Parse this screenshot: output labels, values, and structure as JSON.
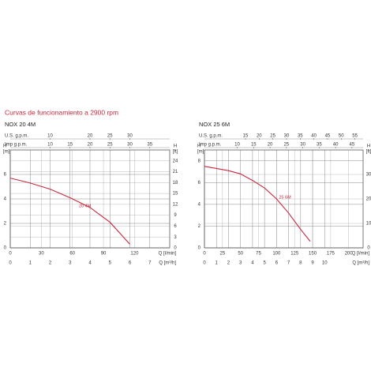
{
  "title": "Curvas de funcionamiento a 2900 rpm",
  "chart_data": [
    {
      "type": "line",
      "title": "NOX 20 4M",
      "x": [
        0,
        1,
        2,
        3,
        4,
        5,
        6
      ],
      "series": [
        {
          "name": "20 4M",
          "color": "#c8283c",
          "values": [
            5.7,
            5.3,
            4.8,
            4.1,
            3.3,
            2.1,
            0.3
          ]
        }
      ],
      "xlabel": "Q [m³/h]",
      "xlim": [
        0,
        8
      ],
      "xticks": [
        0,
        1,
        2,
        3,
        4,
        5,
        6,
        7
      ],
      "x2label": "Q [l/min]",
      "x2lim": [
        0,
        154
      ],
      "x2ticks": [
        0,
        30,
        60,
        90,
        120
      ],
      "top_axes": [
        {
          "label": "U.S. g.p.m.",
          "lim": [
            0,
            40
          ],
          "ticks": [
            10,
            20,
            25,
            30
          ]
        },
        {
          "label": "Imp g.p.m.",
          "lim": [
            0,
            40
          ],
          "ticks": [
            10,
            15,
            20,
            25,
            30,
            35
          ]
        }
      ],
      "ylabel": [
        "H",
        "[m]"
      ],
      "ylim": [
        0,
        8
      ],
      "yticks": [
        0,
        2,
        4,
        6
      ],
      "y2label": [
        "H",
        "[ft]"
      ],
      "y2lim": [
        0,
        27
      ],
      "y2ticks": [
        0,
        3,
        6,
        9,
        12,
        15,
        18,
        21,
        24
      ],
      "grid": true
    },
    {
      "type": "line",
      "title": "NOX 25 6M",
      "x": [
        0,
        1,
        2,
        3,
        4,
        5,
        6,
        7,
        8,
        8.8
      ],
      "series": [
        {
          "name": "25 6M",
          "color": "#c8283c",
          "values": [
            7.5,
            7.3,
            7.1,
            6.8,
            6.2,
            5.5,
            4.5,
            3.2,
            1.7,
            0.6
          ]
        }
      ],
      "xlabel": "Q [m³/h]",
      "xlim": [
        0,
        13.2
      ],
      "xticks": [
        0,
        1,
        2,
        3,
        4,
        5,
        6,
        7,
        8,
        9,
        10
      ],
      "x2label": "Q [l/min]",
      "x2lim": [
        0,
        220
      ],
      "x2ticks": [
        0,
        25,
        50,
        75,
        100,
        125,
        150,
        175,
        200
      ],
      "top_axes": [
        {
          "label": "U.S. g.p.m.",
          "lim": [
            0,
            58
          ],
          "ticks": [
            15,
            20,
            25,
            30,
            35,
            40,
            45,
            50,
            55
          ]
        },
        {
          "label": "Imp g.p.m.",
          "lim": [
            0,
            48.4
          ],
          "ticks": [
            10,
            15,
            20,
            25,
            30,
            35,
            40,
            45
          ]
        }
      ],
      "ylabel": [
        "H",
        "[m]"
      ],
      "ylim": [
        0,
        9
      ],
      "yticks": [
        0,
        2,
        4,
        6,
        8
      ],
      "y2label": [
        "H",
        "[ft]"
      ],
      "y2lim": [
        0,
        40
      ],
      "y2ticks": [
        0,
        10,
        20,
        30
      ],
      "grid": true
    }
  ]
}
